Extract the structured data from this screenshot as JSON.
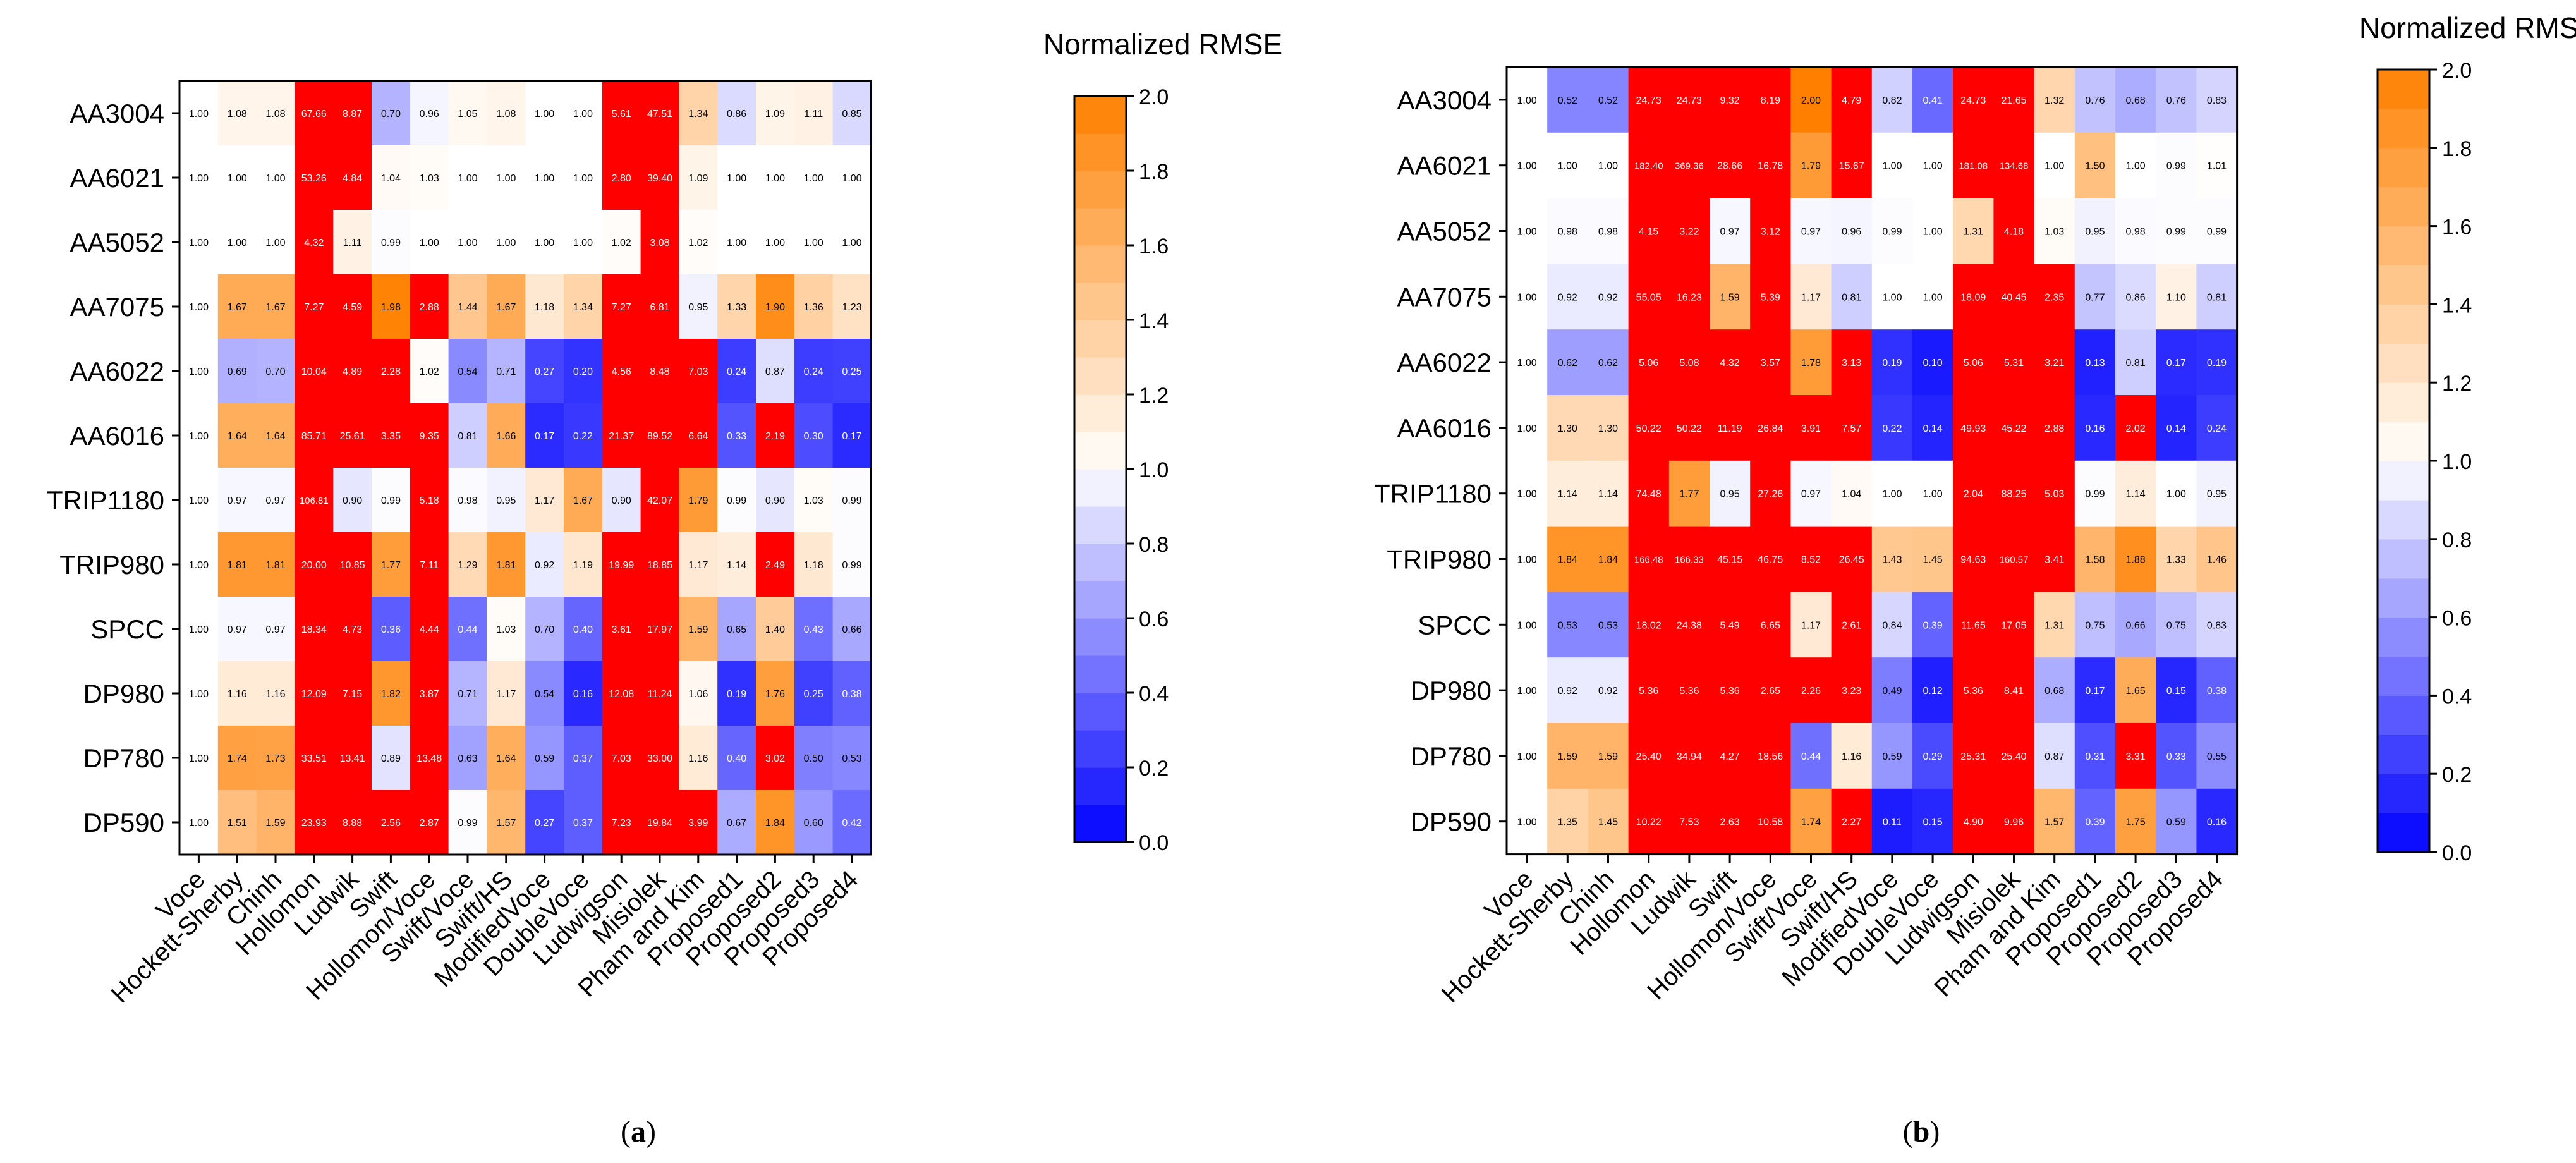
{
  "chart_data": [
    {
      "type": "heatmap",
      "panel": "(a)",
      "caption": "(a)",
      "colorbar": {
        "title": "Normalized RMSE",
        "ticks": [
          "0.0",
          "0.2",
          "0.4",
          "0.6",
          "0.8",
          "1.0",
          "1.2",
          "1.4",
          "1.6",
          "1.8",
          "2.0"
        ],
        "range": [
          0,
          2
        ]
      },
      "rows": [
        "AA3004",
        "AA6021",
        "AA5052",
        "AA7075",
        "AA6022",
        "AA6016",
        "TRIP1180",
        "TRIP980",
        "SPCC",
        "DP980",
        "DP780",
        "DP590"
      ],
      "columns": [
        "Voce",
        "Hockett-Sherby",
        "Chinh",
        "Hollomon",
        "Ludwik",
        "Swift",
        "Hollomon/Voce",
        "Swift/Voce",
        "Swift/HS",
        "ModifiedVoce",
        "DoubleVoce",
        "Ludwigson",
        "Misiolek",
        "Pham and Kim",
        "Proposed1",
        "Proposed2",
        "Proposed3",
        "Proposed4"
      ],
      "values": [
        [
          "1.00",
          "1.08",
          "1.08",
          "67.66",
          "8.87",
          "0.70",
          "0.96",
          "1.05",
          "1.08",
          "1.00",
          "1.00",
          "5.61",
          "47.51",
          "1.34",
          "0.86",
          "1.09",
          "1.11",
          "0.85"
        ],
        [
          "1.00",
          "1.00",
          "1.00",
          "53.26",
          "4.84",
          "1.04",
          "1.03",
          "1.00",
          "1.00",
          "1.00",
          "1.00",
          "2.80",
          "39.40",
          "1.09",
          "1.00",
          "1.00",
          "1.00",
          "1.00"
        ],
        [
          "1.00",
          "1.00",
          "1.00",
          "4.32",
          "1.11",
          "0.99",
          "1.00",
          "1.00",
          "1.00",
          "1.00",
          "1.00",
          "1.02",
          "3.08",
          "1.02",
          "1.00",
          "1.00",
          "1.00",
          "1.00"
        ],
        [
          "1.00",
          "1.67",
          "1.67",
          "7.27",
          "4.59",
          "1.98",
          "2.88",
          "1.44",
          "1.67",
          "1.18",
          "1.34",
          "7.27",
          "6.81",
          "0.95",
          "1.33",
          "1.90",
          "1.36",
          "1.23"
        ],
        [
          "1.00",
          "0.69",
          "0.70",
          "10.04",
          "4.89",
          "2.28",
          "1.02",
          "0.54",
          "0.71",
          "0.27",
          "0.20",
          "4.56",
          "8.48",
          "7.03",
          "0.24",
          "0.87",
          "0.24",
          "0.25"
        ],
        [
          "1.00",
          "1.64",
          "1.64",
          "85.71",
          "25.61",
          "3.35",
          "9.35",
          "0.81",
          "1.66",
          "0.17",
          "0.22",
          "21.37",
          "89.52",
          "6.64",
          "0.33",
          "2.19",
          "0.30",
          "0.17"
        ],
        [
          "1.00",
          "0.97",
          "0.97",
          "106.81",
          "0.90",
          "0.99",
          "5.18",
          "0.98",
          "0.95",
          "1.17",
          "1.67",
          "0.90",
          "42.07",
          "1.79",
          "0.99",
          "0.90",
          "1.03",
          "0.99"
        ],
        [
          "1.00",
          "1.81",
          "1.81",
          "20.00",
          "10.85",
          "1.77",
          "7.11",
          "1.29",
          "1.81",
          "0.92",
          "1.19",
          "19.99",
          "18.85",
          "1.17",
          "1.14",
          "2.49",
          "1.18",
          "0.99"
        ],
        [
          "1.00",
          "0.97",
          "0.97",
          "18.34",
          "4.73",
          "0.36",
          "4.44",
          "0.44",
          "1.03",
          "0.70",
          "0.40",
          "3.61",
          "17.97",
          "1.59",
          "0.65",
          "1.40",
          "0.43",
          "0.66"
        ],
        [
          "1.00",
          "1.16",
          "1.16",
          "12.09",
          "7.15",
          "1.82",
          "3.87",
          "0.71",
          "1.17",
          "0.54",
          "0.16",
          "12.08",
          "11.24",
          "1.06",
          "0.19",
          "1.76",
          "0.25",
          "0.38"
        ],
        [
          "1.00",
          "1.74",
          "1.73",
          "33.51",
          "13.41",
          "0.89",
          "13.48",
          "0.63",
          "1.64",
          "0.59",
          "0.37",
          "7.03",
          "33.00",
          "1.16",
          "0.40",
          "3.02",
          "0.50",
          "0.53"
        ],
        [
          "1.00",
          "1.51",
          "1.59",
          "23.93",
          "8.88",
          "2.56",
          "2.87",
          "0.99",
          "1.57",
          "0.27",
          "0.37",
          "7.23",
          "19.84",
          "3.99",
          "0.67",
          "1.84",
          "0.60",
          "0.42"
        ]
      ]
    },
    {
      "type": "heatmap",
      "panel": "(b)",
      "caption": "(b)",
      "colorbar": {
        "title": "Normalized RMSE",
        "ticks": [
          "0.0",
          "0.2",
          "0.4",
          "0.6",
          "0.8",
          "1.0",
          "1.2",
          "1.4",
          "1.6",
          "1.8",
          "2.0"
        ],
        "range": [
          0,
          2
        ]
      },
      "rows": [
        "AA3004",
        "AA6021",
        "AA5052",
        "AA7075",
        "AA6022",
        "AA6016",
        "TRIP1180",
        "TRIP980",
        "SPCC",
        "DP980",
        "DP780",
        "DP590"
      ],
      "columns": [
        "Voce",
        "Hockett-Sherby",
        "Chinh",
        "Hollomon",
        "Ludwik",
        "Swift",
        "Hollomon/Voce",
        "Swift/Voce",
        "Swift/HS",
        "ModifiedVoce",
        "DoubleVoce",
        "Ludwigson",
        "Misiolek",
        "Pham and Kim",
        "Proposed1",
        "Proposed2",
        "Proposed3",
        "Proposed4"
      ],
      "values": [
        [
          "1.00",
          "0.52",
          "0.52",
          "24.73",
          "24.73",
          "9.32",
          "8.19",
          "2.00",
          "4.79",
          "0.82",
          "0.41",
          "24.73",
          "21.65",
          "1.32",
          "0.76",
          "0.68",
          "0.76",
          "0.83"
        ],
        [
          "1.00",
          "1.00",
          "1.00",
          "182.40",
          "369.36",
          "28.66",
          "16.78",
          "1.79",
          "15.67",
          "1.00",
          "1.00",
          "181.08",
          "134.68",
          "1.00",
          "1.50",
          "1.00",
          "0.99",
          "1.01"
        ],
        [
          "1.00",
          "0.98",
          "0.98",
          "4.15",
          "3.22",
          "0.97",
          "3.12",
          "0.97",
          "0.96",
          "0.99",
          "1.00",
          "1.31",
          "4.18",
          "1.03",
          "0.95",
          "0.98",
          "0.99",
          "0.99"
        ],
        [
          "1.00",
          "0.92",
          "0.92",
          "55.05",
          "16.23",
          "1.59",
          "5.39",
          "1.17",
          "0.81",
          "1.00",
          "1.00",
          "18.09",
          "40.45",
          "2.35",
          "0.77",
          "0.86",
          "1.10",
          "0.81"
        ],
        [
          "1.00",
          "0.62",
          "0.62",
          "5.06",
          "5.08",
          "4.32",
          "3.57",
          "1.78",
          "3.13",
          "0.19",
          "0.10",
          "5.06",
          "5.31",
          "3.21",
          "0.13",
          "0.81",
          "0.17",
          "0.19"
        ],
        [
          "1.00",
          "1.30",
          "1.30",
          "50.22",
          "50.22",
          "11.19",
          "26.84",
          "3.91",
          "7.57",
          "0.22",
          "0.14",
          "49.93",
          "45.22",
          "2.88",
          "0.16",
          "2.02",
          "0.14",
          "0.24"
        ],
        [
          "1.00",
          "1.14",
          "1.14",
          "74.48",
          "1.77",
          "0.95",
          "27.26",
          "0.97",
          "1.04",
          "1.00",
          "1.00",
          "2.04",
          "88.25",
          "5.03",
          "0.99",
          "1.14",
          "1.00",
          "0.95"
        ],
        [
          "1.00",
          "1.84",
          "1.84",
          "166.48",
          "166.33",
          "45.15",
          "46.75",
          "8.52",
          "26.45",
          "1.43",
          "1.45",
          "94.63",
          "160.57",
          "3.41",
          "1.58",
          "1.88",
          "1.33",
          "1.46"
        ],
        [
          "1.00",
          "0.53",
          "0.53",
          "18.02",
          "24.38",
          "5.49",
          "6.65",
          "1.17",
          "2.61",
          "0.84",
          "0.39",
          "11.65",
          "17.05",
          "1.31",
          "0.75",
          "0.66",
          "0.75",
          "0.83"
        ],
        [
          "1.00",
          "0.92",
          "0.92",
          "5.36",
          "5.36",
          "5.36",
          "2.65",
          "2.26",
          "3.23",
          "0.49",
          "0.12",
          "5.36",
          "8.41",
          "0.68",
          "0.17",
          "1.65",
          "0.15",
          "0.38"
        ],
        [
          "1.00",
          "1.59",
          "1.59",
          "25.40",
          "34.94",
          "4.27",
          "18.56",
          "0.44",
          "1.16",
          "0.59",
          "0.29",
          "25.31",
          "25.40",
          "0.87",
          "0.31",
          "3.31",
          "0.33",
          "0.55"
        ],
        [
          "1.00",
          "1.35",
          "1.45",
          "10.22",
          "7.53",
          "2.63",
          "10.58",
          "1.74",
          "2.27",
          "0.11",
          "0.15",
          "4.90",
          "9.96",
          "1.57",
          "0.39",
          "1.75",
          "0.59",
          "0.16"
        ]
      ]
    }
  ]
}
